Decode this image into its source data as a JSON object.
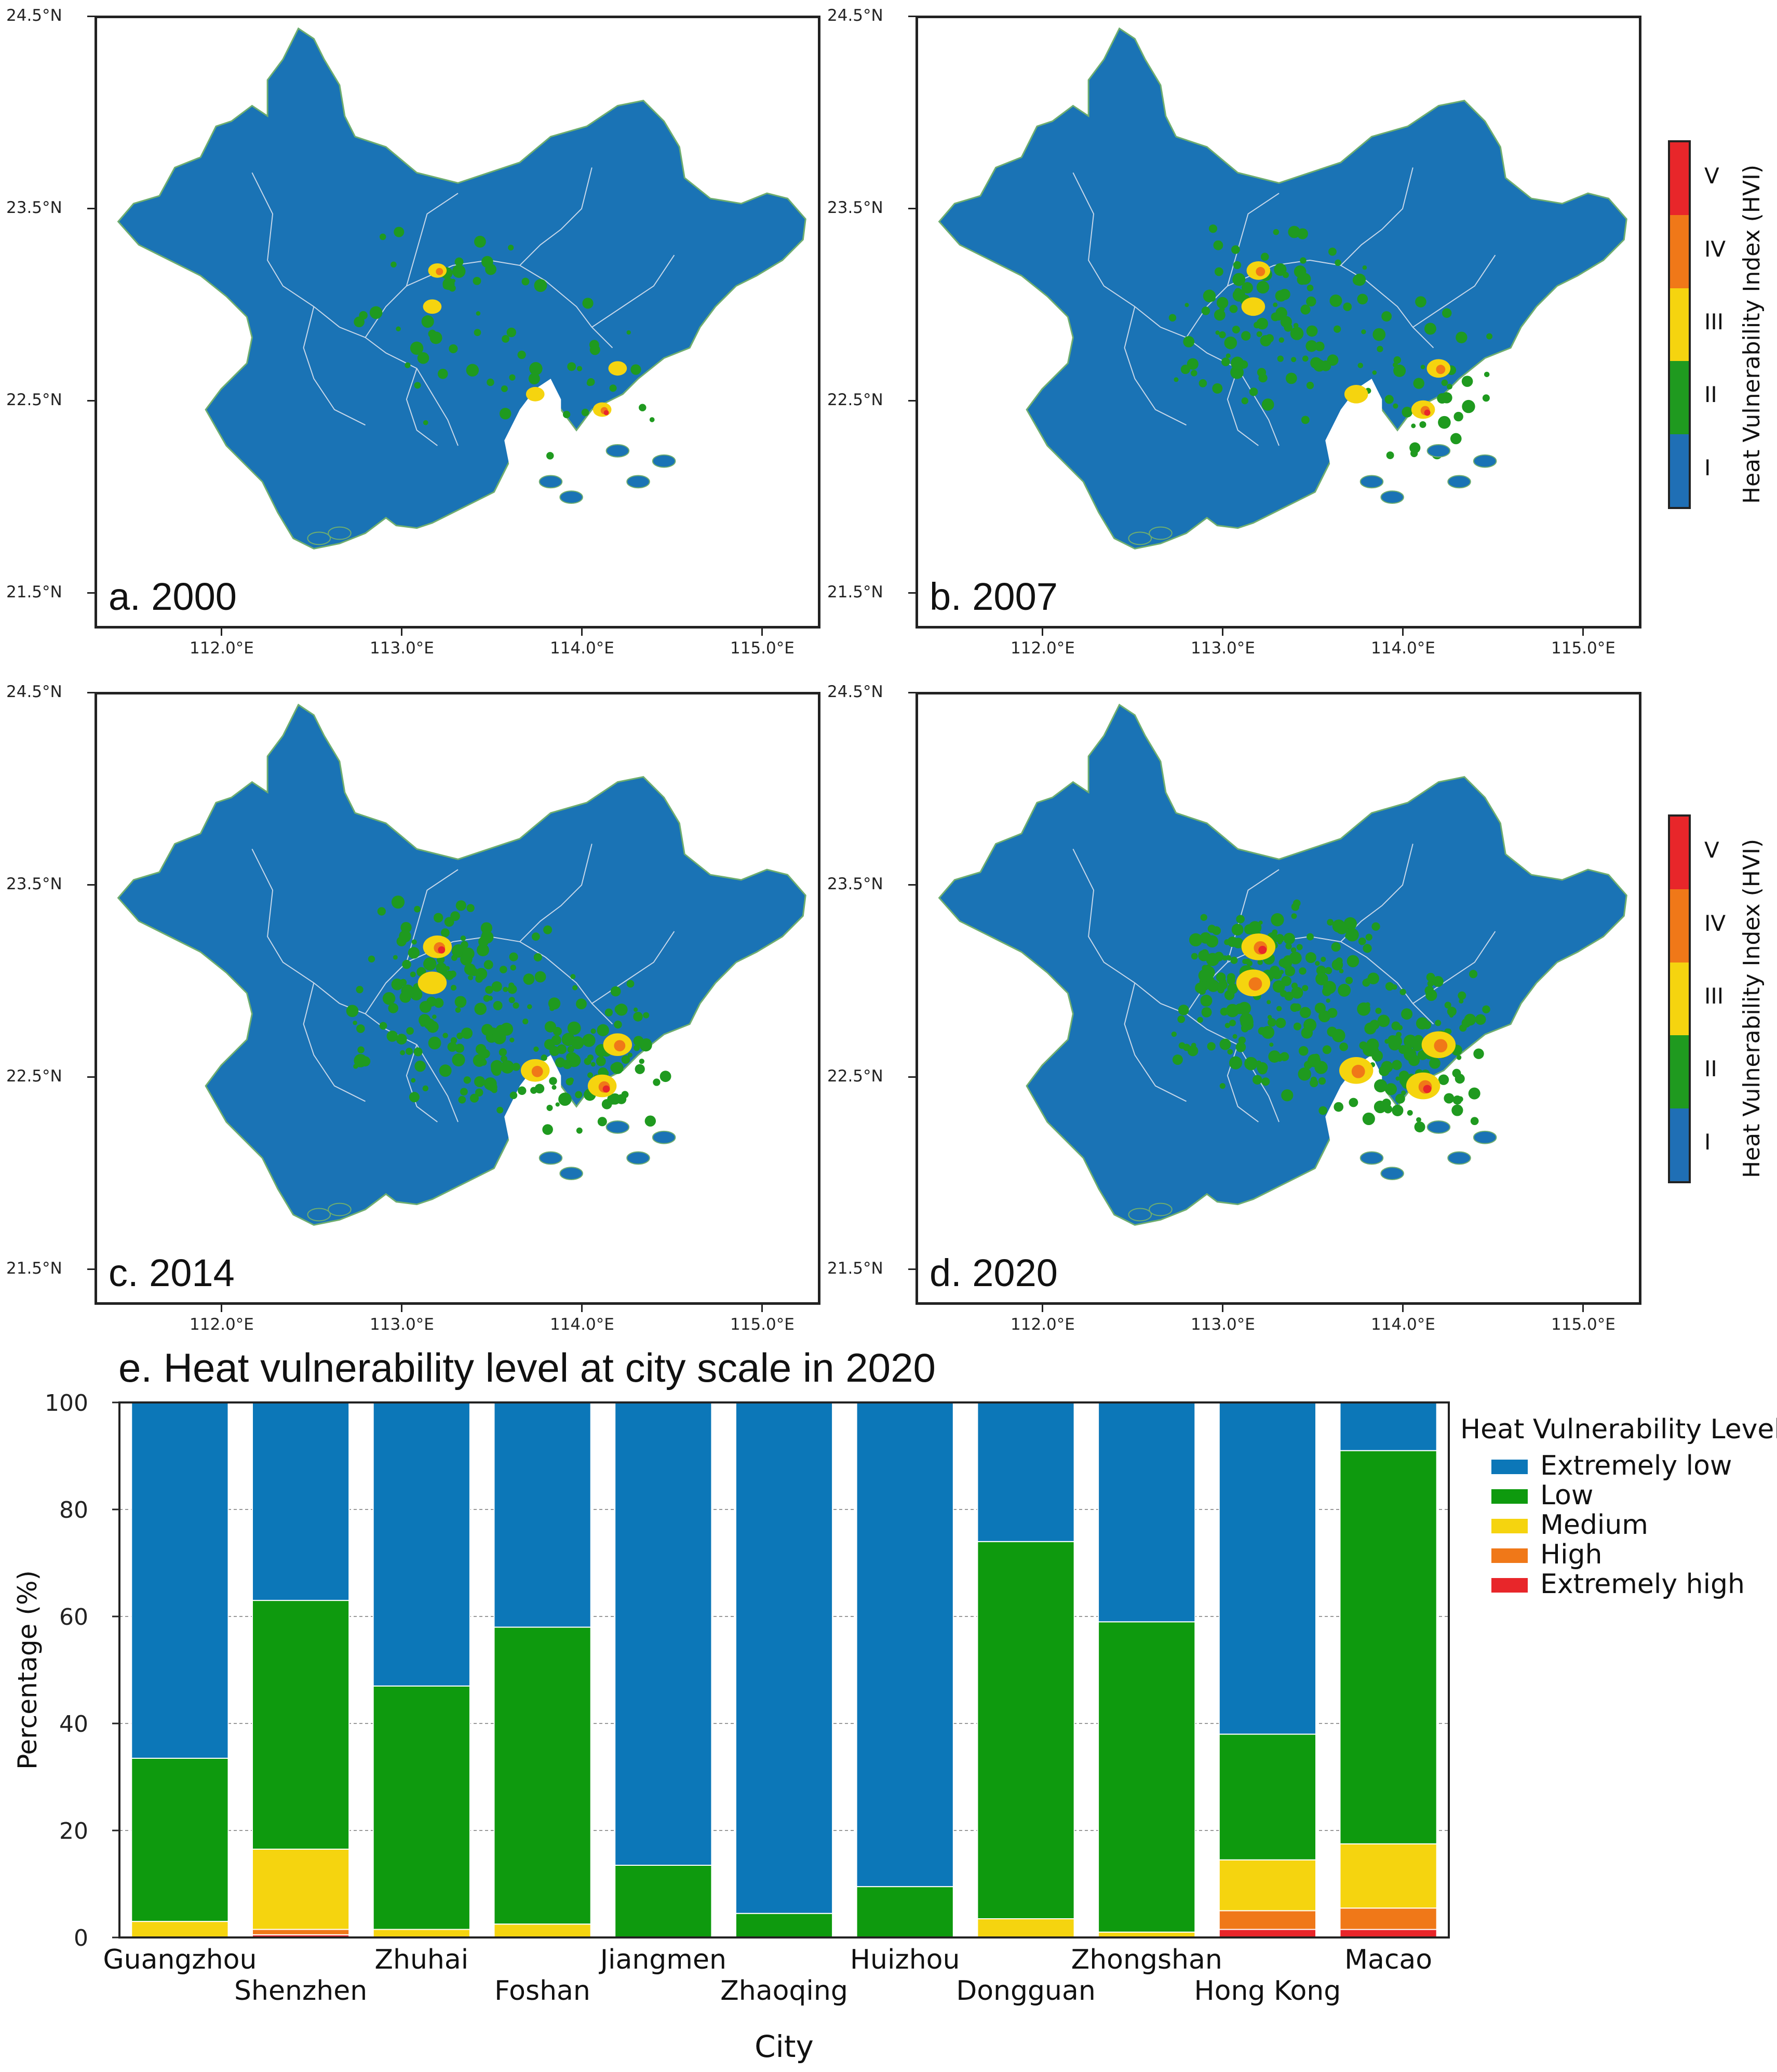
{
  "maps": {
    "panels": [
      {
        "label": "a. 2000"
      },
      {
        "label": "b. 2007"
      },
      {
        "label": "c. 2014"
      },
      {
        "label": "d. 2020"
      }
    ],
    "lat_ticks": [
      "24.5°N",
      "23.5°N",
      "22.5°N",
      "21.5°N"
    ],
    "lon_ticks": [
      "112.0°E",
      "113.0°E",
      "114.0°E",
      "115.0°E"
    ],
    "colorbar": {
      "title": "Heat Vulnerability Index (HVI)",
      "levels": [
        "I",
        "II",
        "III",
        "IV",
        "V"
      ],
      "colors": [
        "#1f6fb5",
        "#1f9a1f",
        "#f5d40f",
        "#f07818",
        "#e8262a"
      ]
    },
    "land_color": "#1a73b5",
    "boundary_color": "#c8d8ea"
  },
  "chart_data": {
    "type": "bar",
    "stacked": true,
    "title": "e. Heat vulnerability level at city scale in 2020",
    "xlabel": "City",
    "ylabel": "Percentage (%)",
    "ylim": [
      0,
      100
    ],
    "yticks": [
      "0",
      "20",
      "40",
      "60",
      "80",
      "100"
    ],
    "grid": "horizontal-dashed",
    "legend_title": "Heat Vulnerability Level",
    "legend_position": "right",
    "categories": [
      "Guangzhou",
      "Shenzhen",
      "Zhuhai",
      "Foshan",
      "Jiangmen",
      "Zhaoqing",
      "Huizhou",
      "Dongguan",
      "Zhongshan",
      "Hong Kong",
      "Macao"
    ],
    "series": [
      {
        "name": "Extremely high",
        "color": "#e8262a",
        "values": [
          0,
          0.5,
          0,
          0,
          0,
          0,
          0,
          0,
          0,
          1.5,
          1.5
        ]
      },
      {
        "name": "High",
        "color": "#f07818",
        "values": [
          0,
          1,
          0,
          0,
          0,
          0,
          0,
          0,
          0,
          3.5,
          4
        ]
      },
      {
        "name": "Medium",
        "color": "#f5d40f",
        "values": [
          3,
          15,
          1.5,
          2.5,
          0,
          0,
          0,
          3.5,
          1,
          9.5,
          12
        ]
      },
      {
        "name": "Low",
        "color": "#0e9a0e",
        "values": [
          30.5,
          46.5,
          45.5,
          55.5,
          13.5,
          4.5,
          9.5,
          70.5,
          58,
          23.5,
          73.5
        ]
      },
      {
        "name": "Extremely low",
        "color": "#0c77b8",
        "values": [
          66.5,
          37,
          53,
          42,
          86.5,
          95.5,
          90.5,
          26,
          41,
          62,
          9
        ]
      }
    ]
  }
}
